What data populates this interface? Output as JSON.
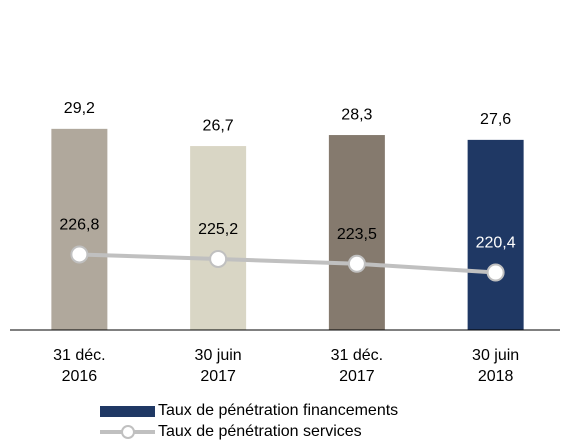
{
  "chart_data": {
    "type": "bar_line",
    "categories": [
      "31 déc.\n2016",
      "30 juin\n2017",
      "31 déc.\n2017",
      "30 juin\n2018"
    ],
    "ylim": [
      0,
      45
    ],
    "y2lim": [
      200,
      310
    ],
    "series": [
      {
        "name": "Taux de pénétration financements",
        "type": "bar",
        "color": "#1f3864",
        "colors": [
          "#b0a89c",
          "#d9d6c5",
          "#857a6e",
          "#1f3864"
        ],
        "values": [
          29.2,
          26.7,
          28.3,
          27.6
        ],
        "value_labels": [
          "29,2",
          "26,7",
          "28,3",
          "27,6"
        ]
      },
      {
        "name": "Taux de pénétration services",
        "type": "line",
        "axis": "y2",
        "color": "#c0c0c0",
        "values": [
          226.8,
          225.2,
          223.5,
          220.4
        ],
        "value_labels": [
          "226,8",
          "225,2",
          "223,5",
          "220,4"
        ]
      }
    ]
  }
}
